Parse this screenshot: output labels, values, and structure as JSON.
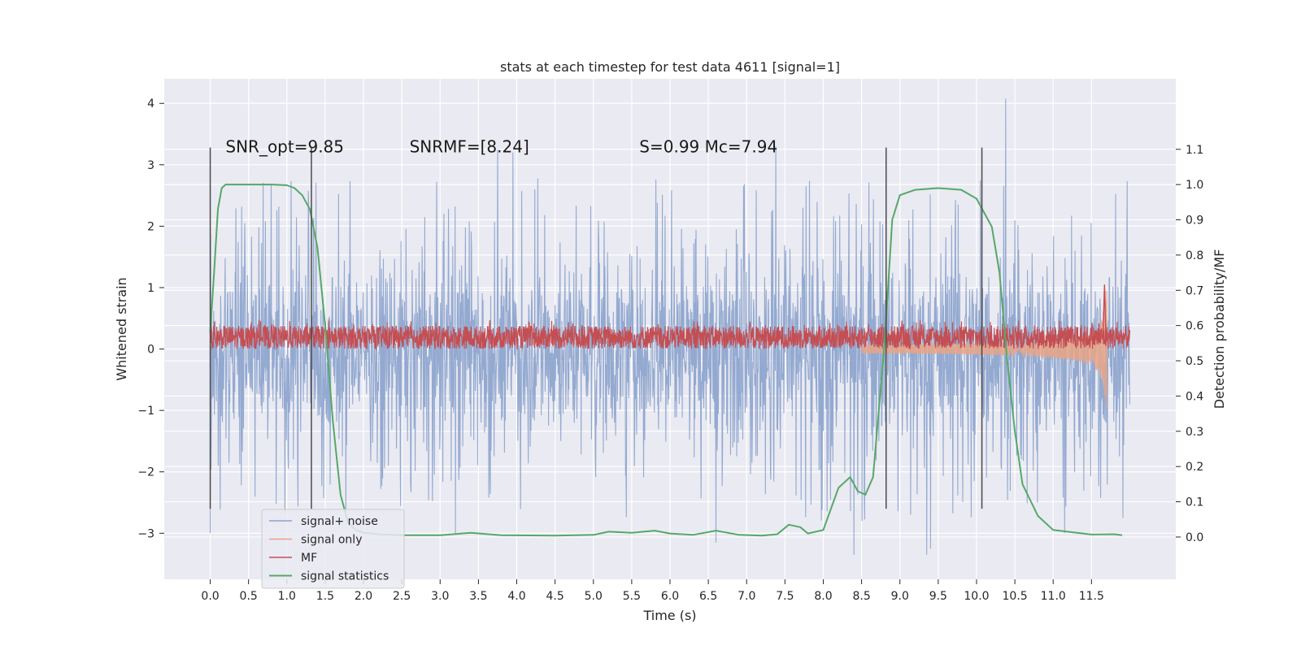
{
  "chart_data": {
    "type": "line",
    "title": "stats at each timestep for test data 4611 [signal=1]",
    "xlabel": "Time (s)",
    "ylabel": "Whitened strain",
    "ylabel_right": "Detection probability/MF",
    "xlim": [
      -0.6,
      12.6
    ],
    "ylim": [
      -3.75,
      4.4
    ],
    "ylim_right": [
      -0.12,
      1.3
    ],
    "x_ticks": [
      "0.0",
      "0.5",
      "1.0",
      "1.5",
      "2.0",
      "2.5",
      "3.0",
      "3.5",
      "4.0",
      "4.5",
      "5.0",
      "5.5",
      "6.0",
      "6.5",
      "7.0",
      "7.5",
      "8.0",
      "8.5",
      "9.0",
      "9.5",
      "10.0",
      "10.5",
      "11.0",
      "11.5"
    ],
    "y_ticks_left": [
      "−3",
      "−2",
      "−1",
      "0",
      "1",
      "2",
      "3",
      "4"
    ],
    "y_ticks_right": [
      "0.0",
      "0.1",
      "0.2",
      "0.3",
      "0.4",
      "0.5",
      "0.6",
      "0.7",
      "0.8",
      "0.9",
      "1.0",
      "1.1"
    ],
    "grid": true,
    "legend_placement": "lower-left",
    "annotations": [
      {
        "text": "SNR_opt=9.85",
        "x": 0.2
      },
      {
        "text": "SNRMF=[8.24]",
        "x": 2.6
      },
      {
        "text": "S=0.99   Mc=7.94",
        "x": 5.6
      }
    ],
    "annotations_y": 3.2,
    "vertical_markers": [
      {
        "x": 0.0,
        "y_range": [
          -2.6,
          3.28
        ]
      },
      {
        "x": 1.32,
        "y_range": [
          -2.6,
          3.28
        ]
      },
      {
        "x": 8.82,
        "y_range": [
          -2.6,
          3.28
        ]
      },
      {
        "x": 10.07,
        "y_range": [
          -2.6,
          3.28
        ]
      }
    ],
    "series": [
      {
        "name": "signal+ noise",
        "color": "#8aa2cc",
        "x_range": [
          0.0,
          12.0
        ],
        "envelope_upper": 1.5,
        "envelope_lower": -1.45,
        "peaks": [
          {
            "x": 10.38,
            "y": 4.08
          },
          {
            "x": 7.38,
            "y": 3.3
          },
          {
            "x": 3.95,
            "y": 3.2
          },
          {
            "x": 3.75,
            "y": 3.25
          },
          {
            "x": 9.35,
            "y": -3.35
          },
          {
            "x": 9.4,
            "y": -3.25
          },
          {
            "x": 8.4,
            "y": -3.35
          },
          {
            "x": 0.0,
            "y": -3.0
          },
          {
            "x": 3.2,
            "y": -3.0
          },
          {
            "x": 6.6,
            "y": -3.15
          },
          {
            "x": 11.15,
            "y": -3.0
          }
        ]
      },
      {
        "name": "signal only",
        "color": "#e9a486",
        "chirp": {
          "start": 8.5,
          "end": 11.7,
          "max_amplitude": 0.95
        }
      },
      {
        "name": "MF",
        "color": "#c44e52",
        "baseline": 0.17,
        "band": [
          0.0,
          0.38
        ],
        "spike": {
          "x": 11.67,
          "y": 1.05
        }
      },
      {
        "name": "signal statistics",
        "color": "#55a868",
        "axis": "right",
        "x": [
          0.0,
          0.05,
          0.1,
          0.15,
          0.2,
          0.3,
          0.5,
          0.8,
          1.0,
          1.1,
          1.2,
          1.3,
          1.4,
          1.5,
          1.6,
          1.7,
          1.8,
          1.9,
          2.0,
          2.2,
          2.5,
          3.0,
          3.4,
          3.8,
          4.5,
          5.0,
          5.2,
          5.5,
          5.8,
          6.0,
          6.3,
          6.6,
          6.9,
          7.2,
          7.4,
          7.55,
          7.7,
          7.8,
          8.0,
          8.1,
          8.2,
          8.35,
          8.45,
          8.55,
          8.65,
          8.8,
          8.9,
          9.0,
          9.2,
          9.5,
          9.8,
          10.0,
          10.2,
          10.3,
          10.4,
          10.5,
          10.6,
          10.8,
          11.0,
          11.5,
          11.8,
          11.9
        ],
        "values": [
          0.58,
          0.75,
          0.93,
          0.99,
          1.0,
          1.0,
          1.0,
          1.0,
          0.998,
          0.99,
          0.97,
          0.93,
          0.82,
          0.6,
          0.33,
          0.12,
          0.04,
          0.02,
          0.012,
          0.008,
          0.005,
          0.005,
          0.012,
          0.005,
          0.004,
          0.006,
          0.015,
          0.012,
          0.018,
          0.01,
          0.006,
          0.018,
          0.006,
          0.004,
          0.008,
          0.035,
          0.028,
          0.01,
          0.02,
          0.08,
          0.14,
          0.17,
          0.13,
          0.12,
          0.17,
          0.55,
          0.9,
          0.97,
          0.985,
          0.99,
          0.985,
          0.96,
          0.88,
          0.75,
          0.5,
          0.3,
          0.15,
          0.06,
          0.02,
          0.007,
          0.008,
          0.005
        ]
      }
    ]
  }
}
